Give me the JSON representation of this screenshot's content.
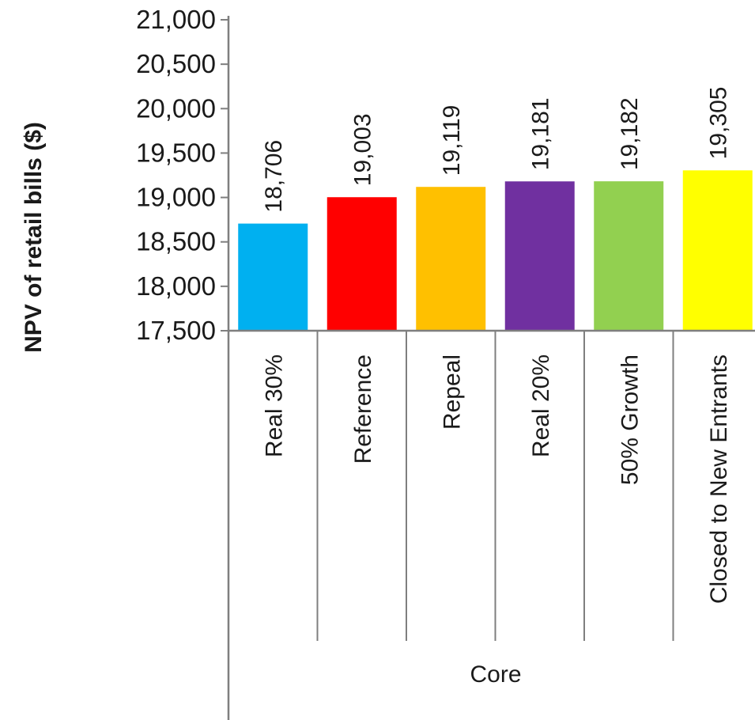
{
  "chart_data": {
    "type": "bar",
    "ylabel": "NPV of retail bills ($)",
    "ylim": [
      17500,
      21000
    ],
    "yticks": [
      17500,
      18000,
      18500,
      19000,
      19500,
      20000,
      20500,
      21000
    ],
    "ytick_labels": [
      "17,500",
      "18,000",
      "18,500",
      "19,000",
      "19,500",
      "20,000",
      "20,500",
      "21,000"
    ],
    "categories": [
      "Real 30%",
      "Reference",
      "Repeal",
      "Real 20%",
      "50% Growth",
      "Closed to New Entrants"
    ],
    "values": [
      18706,
      19003,
      19119,
      19181,
      19182,
      19305
    ],
    "value_labels": [
      "18,706",
      "19,003",
      "19,119",
      "19,181",
      "19,182",
      "19,305"
    ],
    "colors": [
      "#00b0f0",
      "#ff0000",
      "#ffc000",
      "#7030a0",
      "#92d050",
      "#ffff00"
    ],
    "group_label": "Core",
    "grid": false,
    "legend": "none"
  }
}
